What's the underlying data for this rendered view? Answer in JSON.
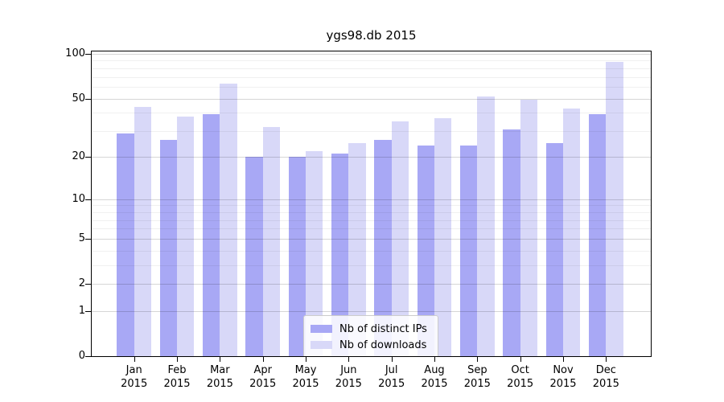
{
  "chart_data": {
    "type": "bar",
    "title": "ygs98.db 2015",
    "categories": [
      "Jan",
      "Feb",
      "Mar",
      "Apr",
      "May",
      "Jun",
      "Jul",
      "Aug",
      "Sep",
      "Oct",
      "Nov",
      "Dec"
    ],
    "category_year": "2015",
    "series": [
      {
        "name": "Nb of distinct IPs",
        "color": "#a8a8f5",
        "values": [
          29,
          26,
          39,
          20,
          20,
          21,
          26,
          24,
          24,
          31,
          25,
          39
        ]
      },
      {
        "name": "Nb of downloads",
        "color": "#d8d8f8",
        "values": [
          44,
          38,
          63,
          32,
          22,
          25,
          35,
          37,
          52,
          49,
          43,
          88
        ]
      }
    ],
    "xlabel": "",
    "ylabel": "",
    "y_scale": "log1p",
    "y_axis": {
      "ticks_major": [
        0,
        1,
        2,
        5,
        10,
        20,
        50,
        100
      ],
      "ticks_minor": [
        3,
        4,
        6,
        7,
        8,
        9,
        30,
        40,
        60,
        70,
        80,
        90
      ],
      "max": 109
    },
    "grid": "on",
    "legend_position": "bottom-center"
  }
}
